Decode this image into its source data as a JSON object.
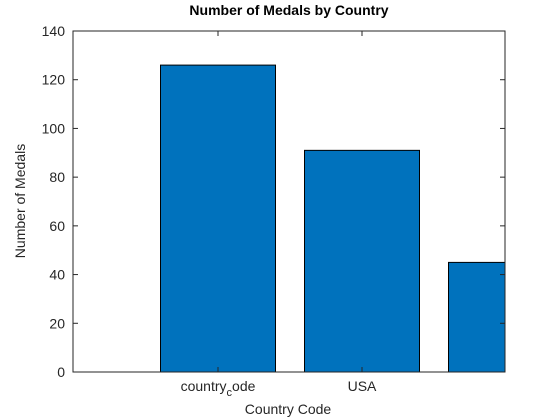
{
  "chart_data": {
    "type": "bar",
    "title": "Number of Medals by Country",
    "xlabel": "Country Code",
    "ylabel": "Number of Medals",
    "categories": [
      "",
      "country_code",
      "USA",
      ""
    ],
    "tick_labels": [
      {
        "base": "country",
        "sub": "c",
        "rest": "ode"
      },
      {
        "base": "USA",
        "sub": "",
        "rest": ""
      }
    ],
    "values": [
      null,
      126,
      91,
      45
    ],
    "ylim": [
      0,
      140
    ],
    "yticks": [
      0,
      20,
      40,
      60,
      80,
      100,
      120,
      140
    ],
    "grid": false,
    "legend": "none",
    "bar_color": "#0072BD",
    "axis_color": "#262626"
  }
}
